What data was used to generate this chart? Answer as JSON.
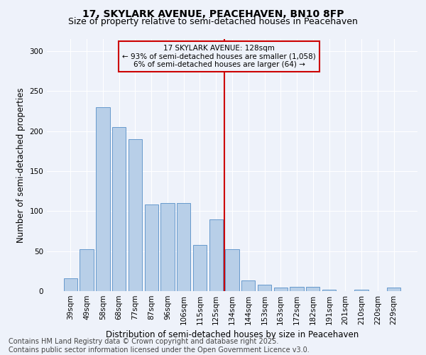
{
  "title": "17, SKYLARK AVENUE, PEACEHAVEN, BN10 8FP",
  "subtitle": "Size of property relative to semi-detached houses in Peacehaven",
  "xlabel": "Distribution of semi-detached houses by size in Peacehaven",
  "ylabel": "Number of semi-detached properties",
  "categories": [
    "39sqm",
    "49sqm",
    "58sqm",
    "68sqm",
    "77sqm",
    "87sqm",
    "96sqm",
    "106sqm",
    "115sqm",
    "125sqm",
    "134sqm",
    "144sqm",
    "153sqm",
    "163sqm",
    "172sqm",
    "182sqm",
    "191sqm",
    "201sqm",
    "210sqm",
    "220sqm",
    "229sqm"
  ],
  "values": [
    16,
    52,
    230,
    205,
    190,
    108,
    110,
    110,
    58,
    90,
    52,
    13,
    8,
    4,
    5,
    5,
    2,
    0,
    2,
    0,
    4
  ],
  "bar_color": "#b8cfe8",
  "bar_edge_color": "#6699cc",
  "vline_x": 9.5,
  "vline_color": "#cc0000",
  "annotation_title": "17 SKYLARK AVENUE: 128sqm",
  "annotation_line1": "← 93% of semi-detached houses are smaller (1,058)",
  "annotation_line2": "6% of semi-detached houses are larger (64) →",
  "annotation_box_color": "#cc0000",
  "ylim": [
    0,
    315
  ],
  "yticks": [
    0,
    50,
    100,
    150,
    200,
    250,
    300
  ],
  "footer_line1": "Contains HM Land Registry data © Crown copyright and database right 2025.",
  "footer_line2": "Contains public sector information licensed under the Open Government Licence v3.0.",
  "bg_color": "#eef2fa",
  "grid_color": "#ffffff",
  "title_fontsize": 10,
  "subtitle_fontsize": 9,
  "axis_label_fontsize": 8.5,
  "tick_fontsize": 7.5,
  "annot_fontsize": 7.5,
  "footer_fontsize": 7
}
